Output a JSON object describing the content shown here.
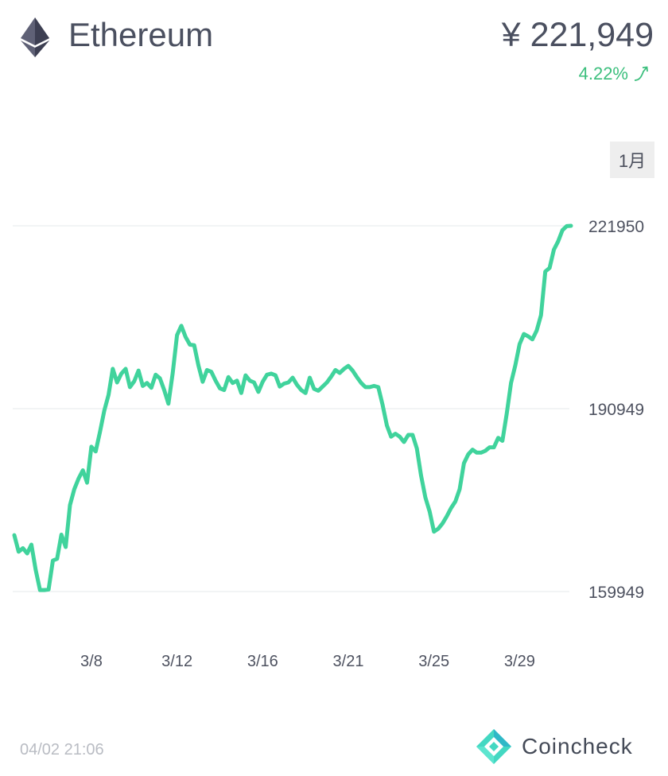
{
  "asset": {
    "name": "Ethereum",
    "icon": "ethereum-icon"
  },
  "price": {
    "display": "¥ 221,949",
    "change": "4.22%",
    "change_icon": "trend-up-arrow-icon",
    "change_color": "#3cbf7d"
  },
  "range": {
    "selected": "1月"
  },
  "footer": {
    "timestamp": "04/02 21:06",
    "brand": "Coincheck",
    "brand_icon": "coincheck-logo-icon"
  },
  "colors": {
    "line": "#40d39c",
    "grid": "#eef0f2",
    "text": "#4b4f5c"
  },
  "chart_data": {
    "type": "line",
    "title": "",
    "xlabel": "",
    "ylabel": "",
    "y_ticks": [
      221950,
      190949,
      159949
    ],
    "ylim": [
      159949,
      221950
    ],
    "x_ticks": [
      "3/8",
      "3/12",
      "3/16",
      "3/21",
      "3/25",
      "3/29"
    ],
    "x_tick_index": [
      18,
      38,
      58,
      78,
      98,
      118
    ],
    "grid": true,
    "series": [
      {
        "values": [
          169500,
          166700,
          167300,
          166400,
          167900,
          163600,
          160200,
          160200,
          160300,
          165200,
          165500,
          169600,
          167500,
          174600,
          177300,
          179100,
          180500,
          178400,
          184500,
          183700,
          187000,
          190600,
          193300,
          197700,
          195400,
          196900,
          197700,
          194600,
          195600,
          197400,
          194800,
          195300,
          194500,
          196700,
          196100,
          194100,
          191800,
          197000,
          203400,
          205000,
          203100,
          201800,
          201700,
          198300,
          195500,
          197500,
          197200,
          195700,
          194400,
          194100,
          196300,
          195300,
          195700,
          193600,
          196600,
          195700,
          195400,
          193800,
          195500,
          196700,
          196900,
          196600,
          194700,
          195200,
          195400,
          196200,
          195000,
          194100,
          193600,
          196200,
          194300,
          194000,
          194700,
          195400,
          196400,
          197500,
          197000,
          197700,
          198200,
          197400,
          196300,
          195300,
          194600,
          194600,
          194800,
          194600,
          191600,
          188100,
          186200,
          186700,
          186200,
          185300,
          186500,
          186500,
          184200,
          179600,
          175900,
          173500,
          170100,
          170600,
          171500,
          172700,
          174100,
          175200,
          177300,
          181700,
          183200,
          184000,
          183500,
          183500,
          183800,
          184400,
          184400,
          186000,
          185500,
          190100,
          195300,
          198300,
          201900,
          203600,
          203200,
          202700,
          204200,
          206800,
          214200,
          214800,
          217900,
          219300,
          221200,
          221900,
          221950
        ]
      }
    ]
  }
}
